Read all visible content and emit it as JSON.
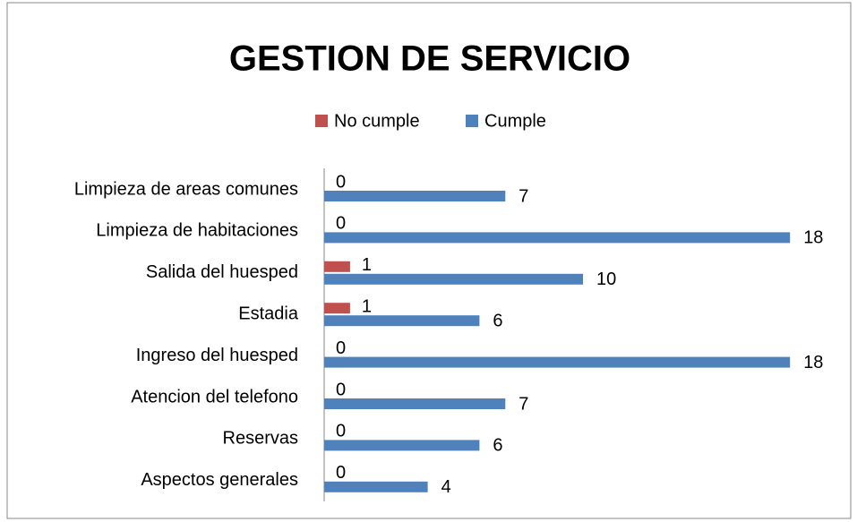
{
  "chart_data": {
    "type": "hbar",
    "title": "GESTION DE SERVICIO",
    "categories": [
      "Limpieza de areas comunes",
      "Limpieza de habitaciones",
      "Salida del huesped",
      "Estadia",
      "Ingreso del huesped",
      "Atencion del telefono",
      "Reservas",
      "Aspectos generales"
    ],
    "series": [
      {
        "name": "No cumple",
        "color": "#c0504d",
        "values": [
          0,
          0,
          1,
          1,
          0,
          0,
          0,
          0
        ]
      },
      {
        "name": "Cumple",
        "color": "#4f81bd",
        "values": [
          7,
          18,
          10,
          6,
          18,
          7,
          6,
          4
        ]
      }
    ],
    "legend": "top"
  }
}
